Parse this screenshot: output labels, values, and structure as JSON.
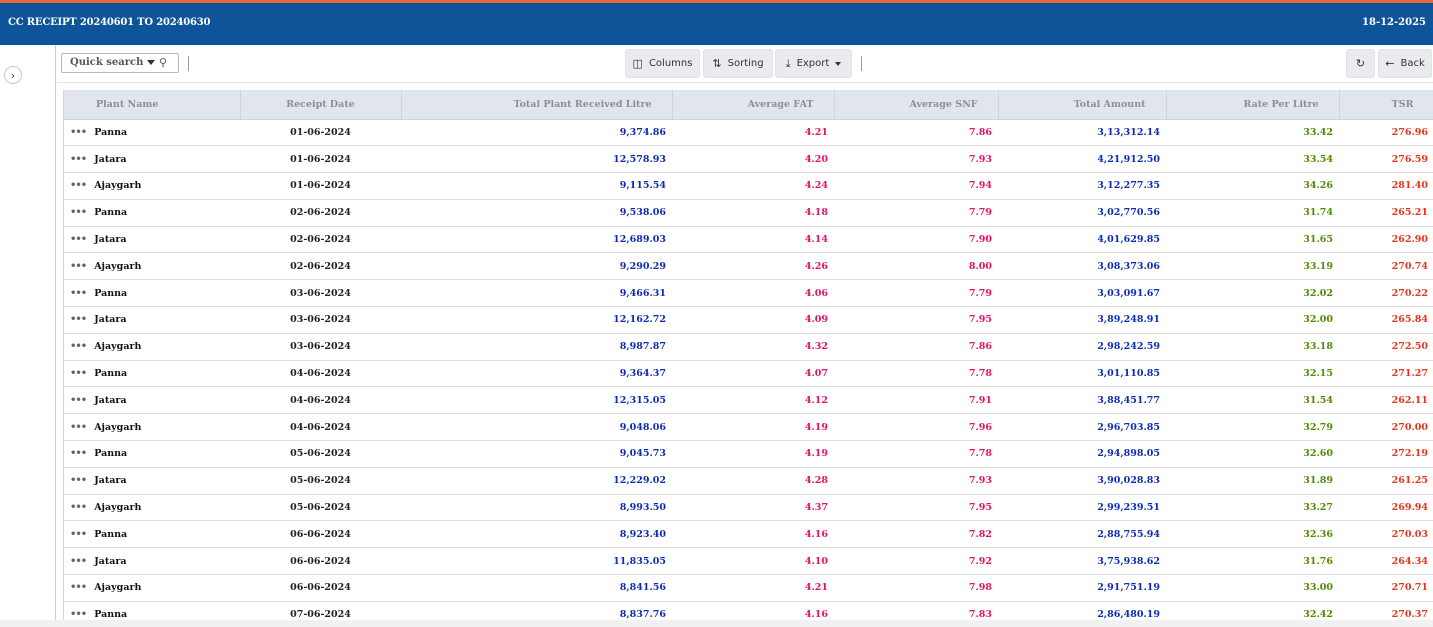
{
  "header": {
    "title": "CC RECEIPT 20240601 TO 20240630",
    "date": "18-12-2025"
  },
  "toolbar": {
    "search_placeholder": "Quick search",
    "columns_label": "Columns",
    "sorting_label": "Sorting",
    "export_label": "Export",
    "back_label": "Back"
  },
  "colors": {
    "header_bg": "#0d5499",
    "top_stripe": "#e8643a",
    "litre": "#0d2bb5",
    "fat": "#e2135f",
    "rate": "#4f8b00",
    "tsr": "#e8331a"
  },
  "table": {
    "columns": [
      "Plant Name",
      "Receipt Date",
      "Total Plant Received Litre",
      "Average FAT",
      "Average SNF",
      "Total Amount",
      "Rate Per Litre",
      "TSR"
    ],
    "rows": [
      [
        "Panna",
        "01-06-2024",
        "9,374.86",
        "4.21",
        "7.86",
        "3,13,312.14",
        "33.42",
        "276.96"
      ],
      [
        "Jatara",
        "01-06-2024",
        "12,578.93",
        "4.20",
        "7.93",
        "4,21,912.50",
        "33.54",
        "276.59"
      ],
      [
        "Ajaygarh",
        "01-06-2024",
        "9,115.54",
        "4.24",
        "7.94",
        "3,12,277.35",
        "34.26",
        "281.40"
      ],
      [
        "Panna",
        "02-06-2024",
        "9,538.06",
        "4.18",
        "7.79",
        "3,02,770.56",
        "31.74",
        "265.21"
      ],
      [
        "Jatara",
        "02-06-2024",
        "12,689.03",
        "4.14",
        "7.90",
        "4,01,629.85",
        "31.65",
        "262.90"
      ],
      [
        "Ajaygarh",
        "02-06-2024",
        "9,290.29",
        "4.26",
        "8.00",
        "3,08,373.06",
        "33.19",
        "270.74"
      ],
      [
        "Panna",
        "03-06-2024",
        "9,466.31",
        "4.06",
        "7.79",
        "3,03,091.67",
        "32.02",
        "270.22"
      ],
      [
        "Jatara",
        "03-06-2024",
        "12,162.72",
        "4.09",
        "7.95",
        "3,89,248.91",
        "32.00",
        "265.84"
      ],
      [
        "Ajaygarh",
        "03-06-2024",
        "8,987.87",
        "4.32",
        "7.86",
        "2,98,242.59",
        "33.18",
        "272.50"
      ],
      [
        "Panna",
        "04-06-2024",
        "9,364.37",
        "4.07",
        "7.78",
        "3,01,110.85",
        "32.15",
        "271.27"
      ],
      [
        "Jatara",
        "04-06-2024",
        "12,315.05",
        "4.12",
        "7.91",
        "3,88,451.77",
        "31.54",
        "262.11"
      ],
      [
        "Ajaygarh",
        "04-06-2024",
        "9,048.06",
        "4.19",
        "7.96",
        "2,96,703.85",
        "32.79",
        "270.00"
      ],
      [
        "Panna",
        "05-06-2024",
        "9,045.73",
        "4.19",
        "7.78",
        "2,94,898.05",
        "32.60",
        "272.19"
      ],
      [
        "Jatara",
        "05-06-2024",
        "12,229.02",
        "4.28",
        "7.93",
        "3,90,028.83",
        "31.89",
        "261.25"
      ],
      [
        "Ajaygarh",
        "05-06-2024",
        "8,993.50",
        "4.37",
        "7.95",
        "2,99,239.51",
        "33.27",
        "269.94"
      ],
      [
        "Panna",
        "06-06-2024",
        "8,923.40",
        "4.16",
        "7.82",
        "2,88,755.94",
        "32.36",
        "270.03"
      ],
      [
        "Jatara",
        "06-06-2024",
        "11,835.05",
        "4.10",
        "7.92",
        "3,75,938.62",
        "31.76",
        "264.34"
      ],
      [
        "Ajaygarh",
        "06-06-2024",
        "8,841.56",
        "4.21",
        "7.98",
        "2,91,751.19",
        "33.00",
        "270.71"
      ],
      [
        "Panna",
        "07-06-2024",
        "8,837.76",
        "4.16",
        "7.83",
        "2,86,480.19",
        "32.42",
        "270.37"
      ]
    ]
  }
}
